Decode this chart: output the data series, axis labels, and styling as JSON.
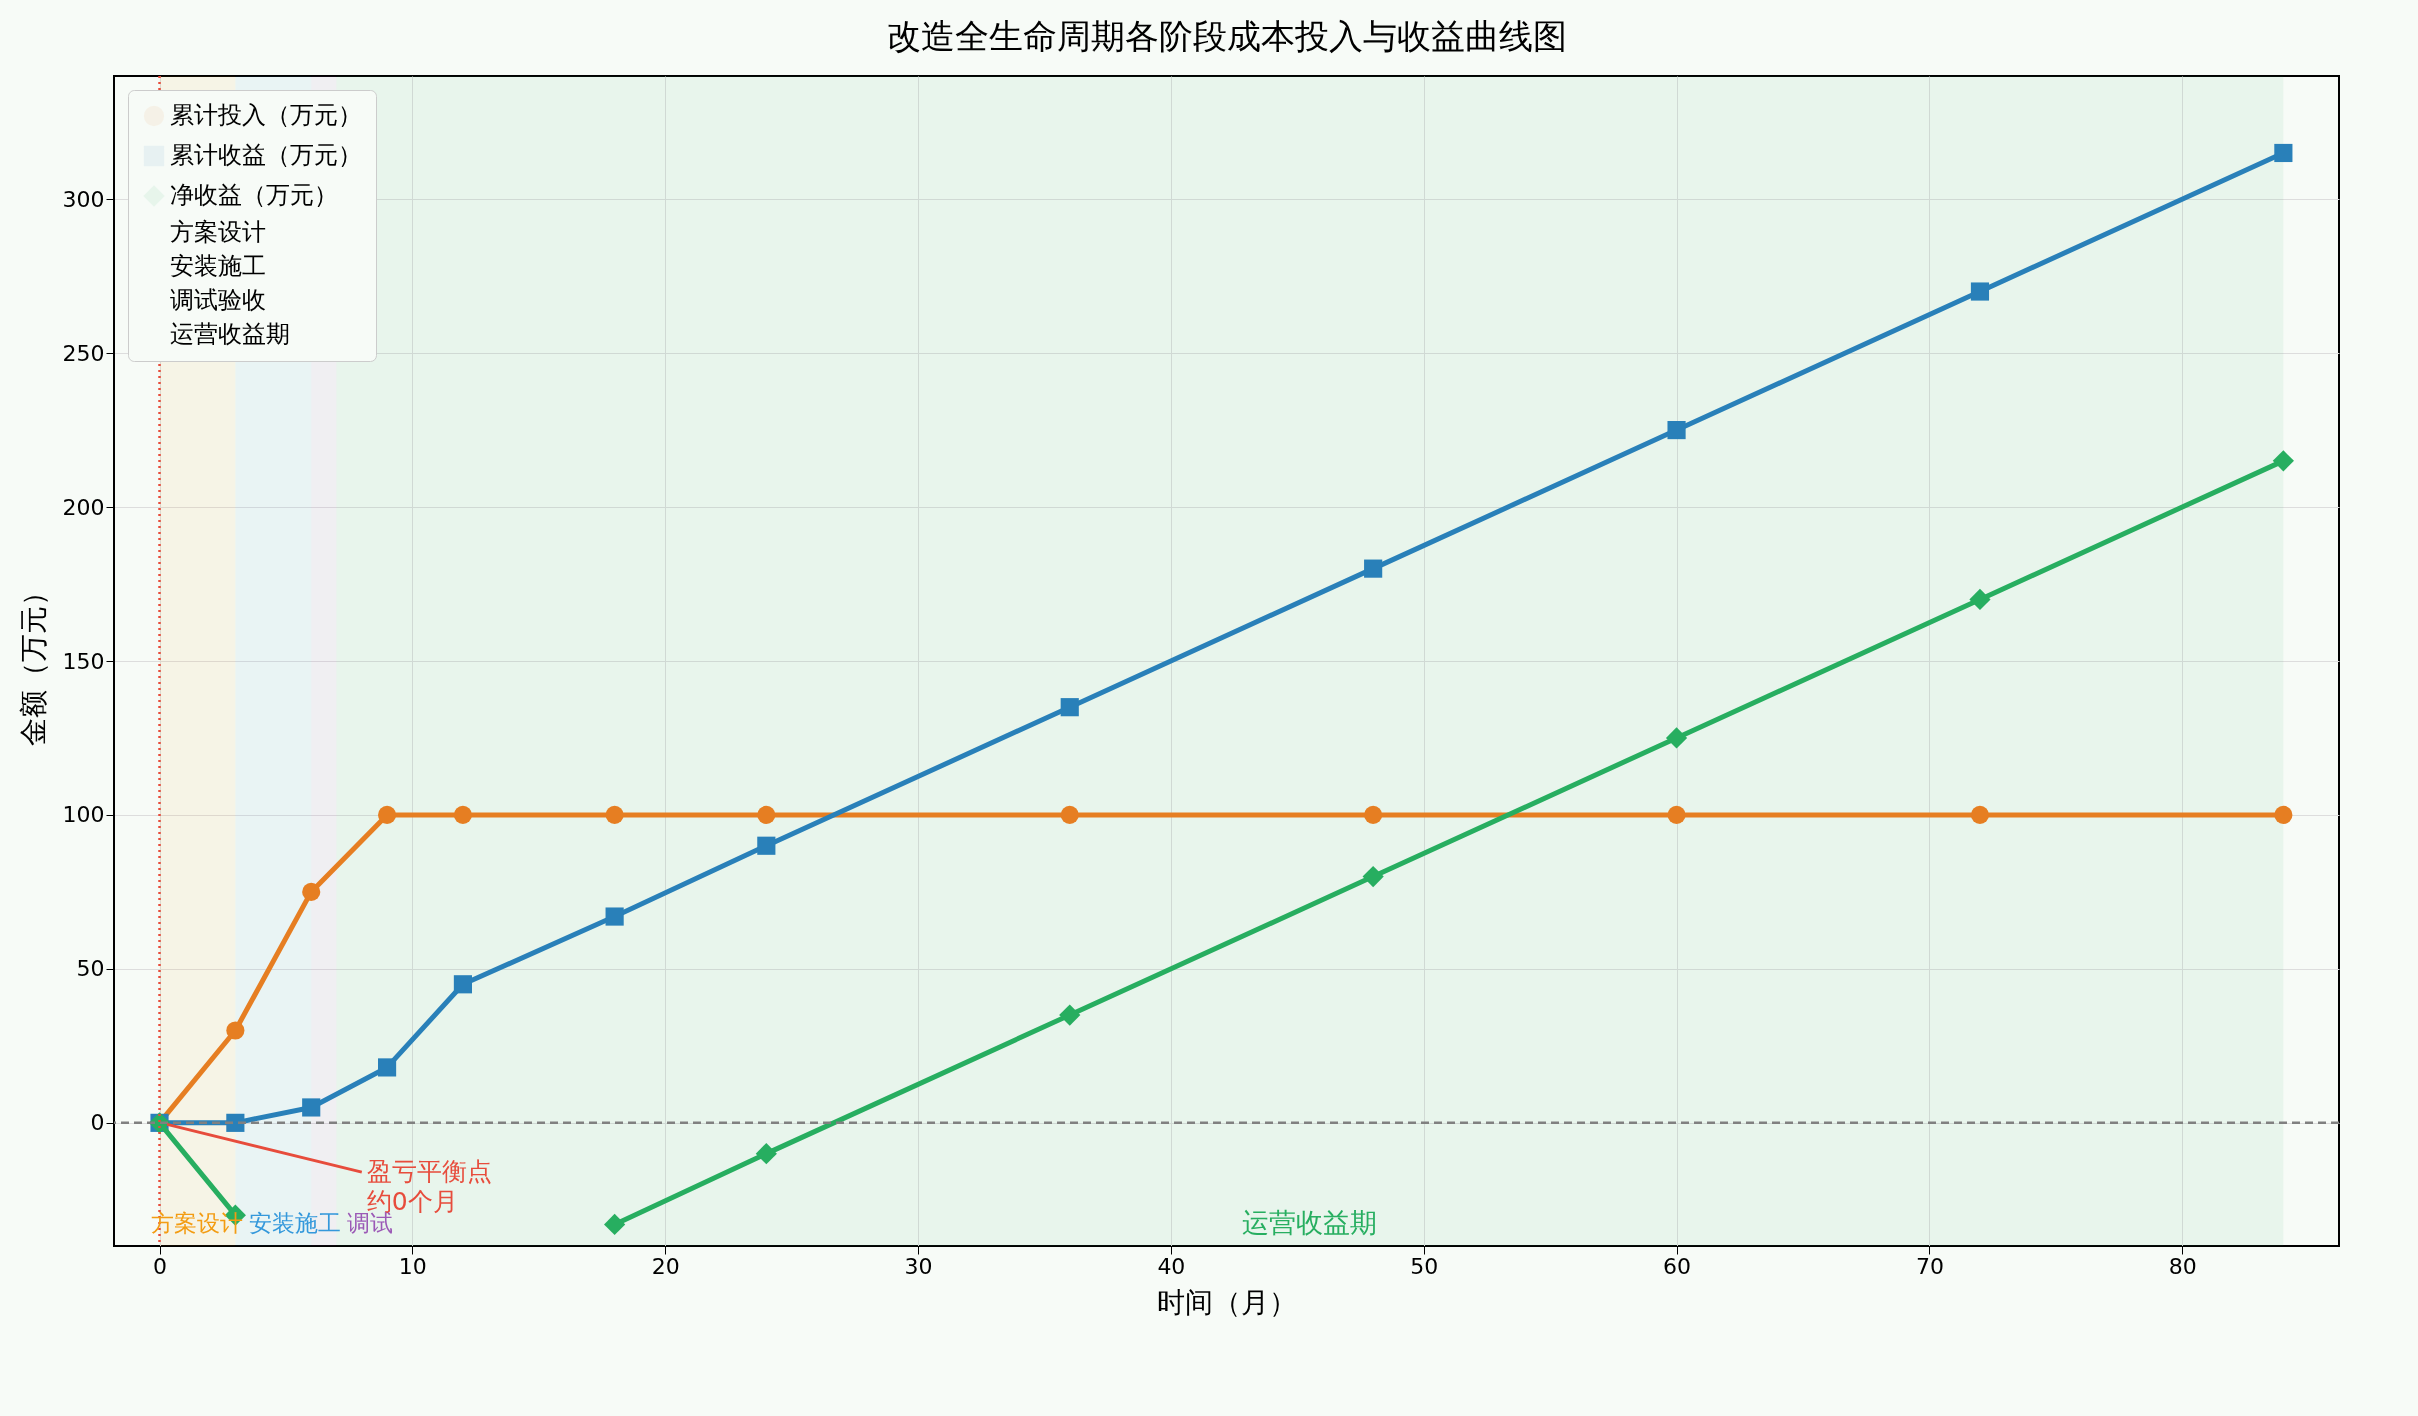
{
  "chart_data": {
    "type": "line",
    "title": "改造全生命周期各阶段成本投入与收益曲线图",
    "xlabel": "时间（月）",
    "ylabel": "金额（万元）",
    "x": [
      0,
      3,
      6,
      9,
      12,
      18,
      24,
      36,
      48,
      60,
      72,
      84
    ],
    "series": [
      {
        "name": "累计投入（万元）",
        "color": "#e67e22",
        "marker": "circle",
        "values": [
          0,
          30,
          75,
          100,
          100,
          100,
          100,
          100,
          100,
          100,
          100,
          100
        ]
      },
      {
        "name": "累计收益（万元）",
        "color": "#2980b9",
        "marker": "square",
        "values": [
          0,
          0,
          5,
          18,
          45,
          67,
          90,
          135,
          180,
          225,
          270,
          315
        ]
      },
      {
        "name": "净收益（万元）",
        "color": "#27ae60",
        "marker": "diamond",
        "values": [
          0,
          -30,
          null,
          null,
          null,
          -33,
          -10,
          35,
          80,
          125,
          170,
          215
        ]
      }
    ],
    "bands": [
      {
        "axis": "x",
        "from": 0,
        "to": 3,
        "label": "方案设计",
        "color": "#f39c12"
      },
      {
        "axis": "x",
        "from": 3,
        "to": 6,
        "label": "安装施工",
        "color": "#3498db"
      },
      {
        "axis": "x",
        "from": 6,
        "to": 7,
        "label": "调试验收",
        "color": "#9b59b6"
      },
      {
        "axis": "x",
        "from": 7,
        "to": 84,
        "label": "运营收益期",
        "color": "#27ae60"
      }
    ],
    "ref_lines": [
      {
        "axis": "x",
        "value": 0,
        "color": "#e74c3c",
        "line_style": "dotted"
      },
      {
        "axis": "y",
        "value": 0,
        "color": "#808080",
        "line_style": "dashed"
      }
    ],
    "annotations": [
      {
        "text": "盈亏平衡点约0个月",
        "x": 0,
        "y": 0
      },
      "方案设计",
      "安装施工",
      "调试",
      "运营收益期"
    ],
    "xlim": [
      -1.8,
      86.2
    ],
    "xticks": [
      0,
      10,
      20,
      30,
      40,
      50,
      60,
      70,
      80
    ],
    "ylim": [
      -40,
      340
    ],
    "yticks": [
      0,
      50,
      100,
      150,
      200,
      250,
      300
    ],
    "grid": true,
    "legend": "top left",
    "line_style": "solid"
  }
}
